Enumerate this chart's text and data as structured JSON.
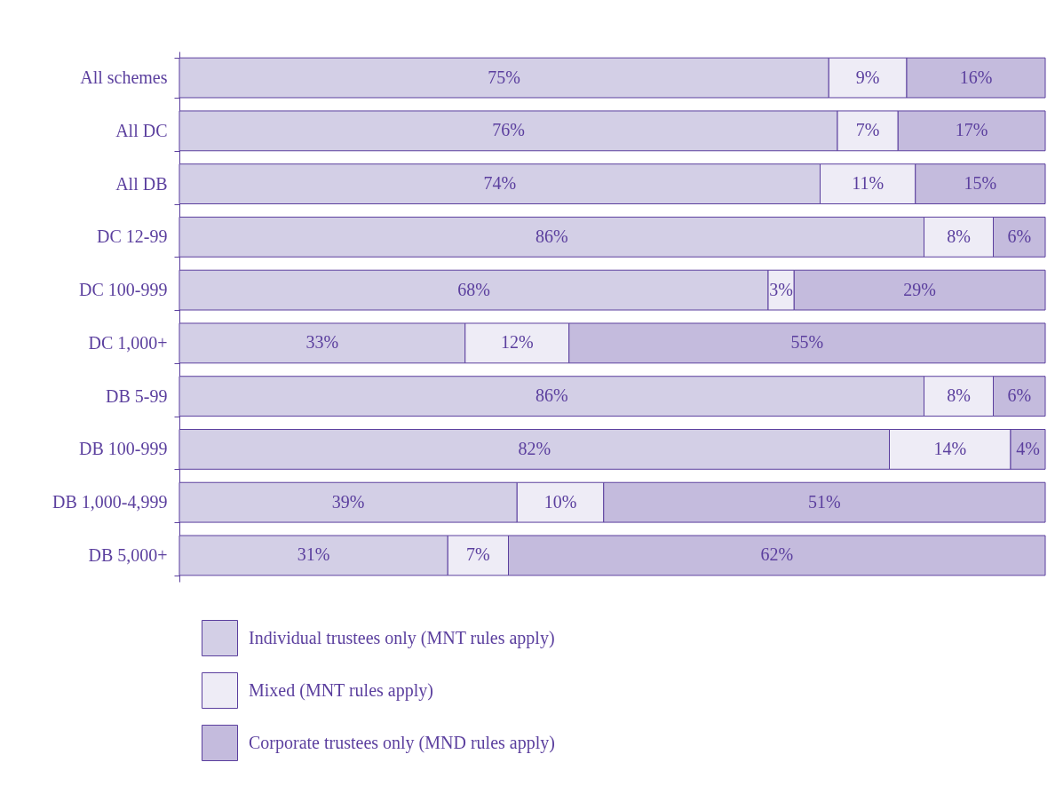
{
  "chart_data": {
    "type": "bar",
    "orientation": "horizontal",
    "stacked": true,
    "legend": "bottom left",
    "categories": [
      "All schemes",
      "All DC",
      "All DB",
      "DC 12-99",
      "DC 100-999",
      "DC 1,000+",
      "DB 5-99",
      "DB 100-999",
      "DB 1,000-4,999",
      "DB 5,000+"
    ],
    "series": [
      {
        "name": "Individual trustees only (MNT rules apply)",
        "color": "#d3cfe6",
        "values": [
          75,
          76,
          74,
          86,
          68,
          33,
          86,
          82,
          39,
          31
        ],
        "value_labels": [
          "75%",
          "76%",
          "74%",
          "86%",
          "68%",
          "33%",
          "86%",
          "82%",
          "39%",
          "31%"
        ]
      },
      {
        "name": "Mixed (MNT rules apply)",
        "color": "#eeecf6",
        "values": [
          9,
          7,
          11,
          8,
          3,
          12,
          8,
          14,
          10,
          7
        ],
        "value_labels": [
          "9%",
          "7%",
          "11%",
          "8%",
          "3%",
          "12%",
          "8%",
          "14%",
          "10%",
          "7%"
        ]
      },
      {
        "name": "Corporate trustees only (MND rules apply)",
        "color": "#c4bbdd",
        "values": [
          16,
          17,
          15,
          6,
          29,
          55,
          6,
          4,
          51,
          62
        ],
        "value_labels": [
          "16%",
          "17%",
          "15%",
          "6%",
          "29%",
          "55%",
          "6%",
          "4%",
          "51%",
          "62%"
        ]
      }
    ]
  }
}
